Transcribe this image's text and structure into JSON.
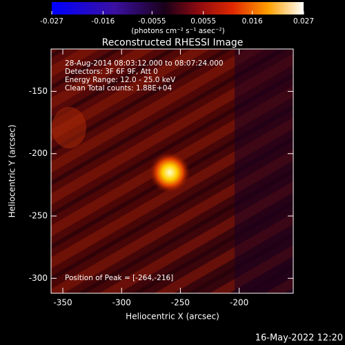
{
  "chart_data": {
    "type": "heatmap",
    "title": "Reconstructed RHESSI Image",
    "xlabel": "Heliocentric X (arcsec)",
    "ylabel": "Heliocentric Y (arcsec)",
    "xlim": [
      -360,
      -154
    ],
    "ylim": [
      -312,
      -116
    ],
    "xticks": [
      -350,
      -300,
      -250,
      -200
    ],
    "yticks": [
      -300,
      -250,
      -200,
      -150
    ],
    "colorbar": {
      "lim": [
        -0.027,
        0.027
      ],
      "ticks": [
        -0.027,
        -0.016,
        -0.0055,
        0.0055,
        0.016,
        0.027
      ],
      "label": "(photons cm⁻² s⁻¹ asec⁻²)"
    },
    "annotations": [
      "28-Aug-2014 08:03:12.000 to 08:07:24.000",
      "Detectors: 3F 6F 9F, Att 0",
      "Energy Range: 12.0 - 25.0 keV",
      "Clean     Total counts: 1.88E+04"
    ],
    "peak_label": "Position of Peak = [-264,-216]",
    "footer": "16-May-2022 12:20"
  }
}
